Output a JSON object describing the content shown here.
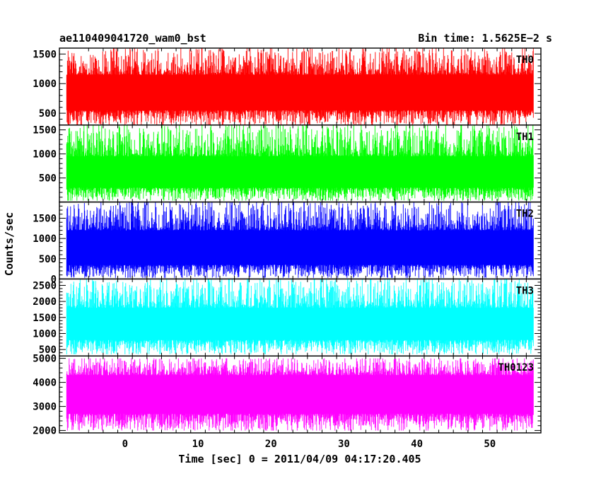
{
  "header": {
    "left": "ae110409041720_wam0_bst",
    "right": "Bin time: 1.5625E−2 s"
  },
  "chart_data": {
    "type": "line",
    "title": "ae110409041720_wam0_bst",
    "subtitle": "Bin time: 1.5625E−2 s",
    "xlabel": "Time [sec] 0 = 2011/04/09 04:17:20.405",
    "ylabel": "Counts/sec",
    "xlim": [
      -9,
      57
    ],
    "x_data_range": [
      -8,
      56
    ],
    "bin_time": 0.015625,
    "x_ticks": [
      0,
      10,
      20,
      30,
      40,
      50
    ],
    "x_tick_labels": [
      "0",
      "10",
      "20",
      "30",
      "40",
      "50"
    ],
    "grid": false,
    "panels": [
      {
        "name": "TH0",
        "color": "#ff0000",
        "ylim": [
          300,
          1600
        ],
        "y_ticks": [
          500,
          1000,
          1500
        ],
        "y_tick_labels": [
          "500",
          "1000",
          "1500"
        ],
        "band_low": 550,
        "band_high": 1150,
        "min": 300,
        "max": 1600
      },
      {
        "name": "TH1",
        "color": "#00ff00",
        "ylim": [
          0,
          1600
        ],
        "y_ticks": [
          500,
          1000,
          1500
        ],
        "y_tick_labels": [
          "500",
          "1000",
          "1500"
        ],
        "band_low": 300,
        "band_high": 950,
        "min": 30,
        "max": 1600
      },
      {
        "name": "TH2",
        "color": "#0000ff",
        "ylim": [
          0,
          1900
        ],
        "y_ticks": [
          0,
          500,
          1000,
          1500
        ],
        "y_tick_labels": [
          "0",
          "500",
          "1000",
          "1500"
        ],
        "band_low": 350,
        "band_high": 1200,
        "min": 30,
        "max": 1900
      },
      {
        "name": "TH3",
        "color": "#00ffff",
        "ylim": [
          300,
          2700
        ],
        "y_ticks": [
          500,
          1000,
          1500,
          2000,
          2500
        ],
        "y_tick_labels": [
          "500",
          "1000",
          "1500",
          "2000",
          "2500"
        ],
        "band_low": 800,
        "band_high": 1800,
        "min": 350,
        "max": 2700
      },
      {
        "name": "TH0123",
        "color": "#ff00ff",
        "ylim": [
          1900,
          5100
        ],
        "y_ticks": [
          2000,
          3000,
          4000,
          5000
        ],
        "y_tick_labels": [
          "2000",
          "3000",
          "4000",
          "5000"
        ],
        "band_low": 2700,
        "band_high": 4300,
        "min": 2000,
        "max": 5000
      }
    ]
  }
}
